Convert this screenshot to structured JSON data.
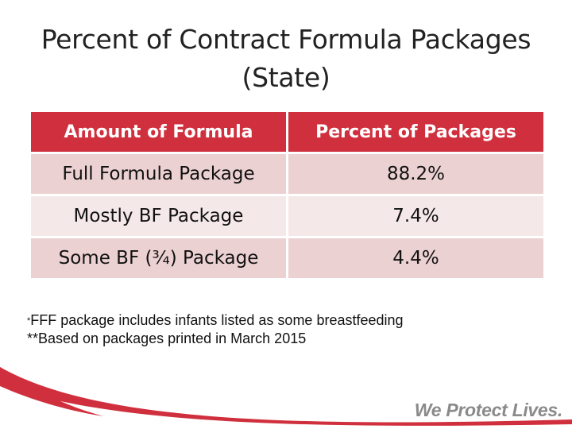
{
  "slide": {
    "title_line1": "Percent of Contract Formula Packages",
    "title_line2": "(State)"
  },
  "table": {
    "headers": [
      "Amount of Formula",
      "Percent of Packages"
    ],
    "rows": [
      {
        "label": "Full Formula Package",
        "value": "88.2%"
      },
      {
        "label": "Mostly BF Package",
        "value": "7.4%"
      },
      {
        "label": "Some BF (¾) Package",
        "value": "4.4%"
      }
    ]
  },
  "notes": {
    "note1_marker": "*",
    "note1_text": "FFF package includes infants listed as some  breastfeeding",
    "note2_text": "**Based on packages printed in March 2015"
  },
  "footer": {
    "tagline": "We Protect Lives."
  },
  "colors": {
    "header_red": "#d0303d",
    "row_dark": "#ecd1d2",
    "row_light": "#f5e8e8",
    "swoosh_red": "#d0303d"
  }
}
